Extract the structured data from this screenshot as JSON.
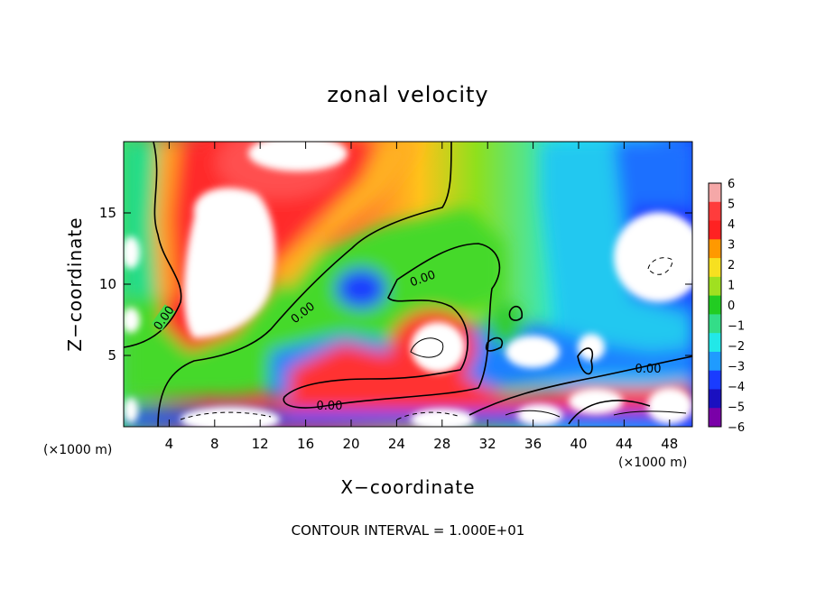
{
  "chart_data": {
    "type": "heatmap",
    "title": "zonal velocity",
    "xlabel": "X−coordinate",
    "ylabel": "Z−coordinate",
    "x_unit_left": "(×1000 m)",
    "x_unit_right": "(×1000 m)",
    "footer": "CONTOUR INTERVAL = 1.000E+01",
    "xlim": [
      0,
      50
    ],
    "ylim": [
      0,
      20
    ],
    "x_ticks": [
      "4",
      "8",
      "12",
      "16",
      "20",
      "24",
      "28",
      "32",
      "36",
      "40",
      "44",
      "48"
    ],
    "x_tick_values": [
      4,
      8,
      12,
      16,
      20,
      24,
      28,
      32,
      36,
      40,
      44,
      48
    ],
    "y_ticks": [
      "5",
      "10",
      "15"
    ],
    "y_tick_values": [
      5,
      10,
      15
    ],
    "colorbar": {
      "labels": [
        "6",
        "5",
        "4",
        "3",
        "2",
        "1",
        "0",
        "−1",
        "−2",
        "−3",
        "−4",
        "−5",
        "−6"
      ],
      "values": [
        6,
        5,
        4,
        3,
        2,
        1,
        0,
        -1,
        -2,
        -3,
        -4,
        -5,
        -6
      ],
      "colors": [
        "#f5a8a8",
        "#ff3c3c",
        "#ff2222",
        "#ff9900",
        "#f7e020",
        "#a0e020",
        "#22cc22",
        "#33dd88",
        "#22e8e8",
        "#1f9bff",
        "#1a3cff",
        "#1a10c0",
        "#7a00a8"
      ]
    },
    "contour_labels": [
      {
        "text": "0.00"
      },
      {
        "text": "0.00"
      },
      {
        "text": "0.00"
      },
      {
        "text": "0.00"
      },
      {
        "text": "0.00"
      }
    ]
  }
}
